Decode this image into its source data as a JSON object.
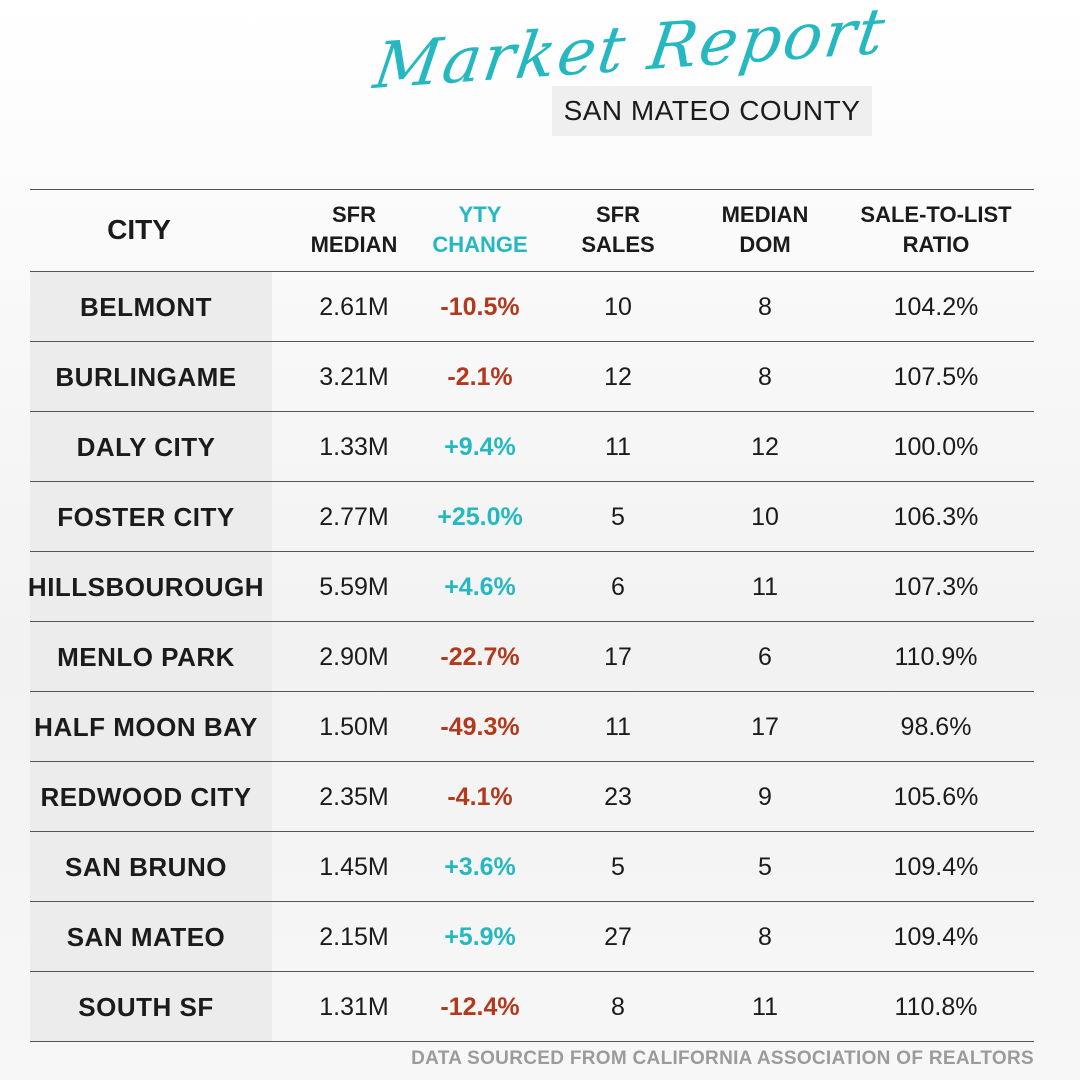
{
  "title_script": "Market Report",
  "county": "SAN MATEO COUNTY",
  "colors": {
    "accent": "#25b8c0",
    "negative": "#b2391c"
  },
  "headers": {
    "city": "CITY",
    "median": [
      "SFR",
      "MEDIAN"
    ],
    "change": [
      "YTY",
      "CHANGE"
    ],
    "sales": [
      "SFR",
      "SALES"
    ],
    "dom": [
      "MEDIAN",
      "DOM"
    ],
    "ratio": [
      "SALE-TO-LIST",
      "RATIO"
    ]
  },
  "rows": [
    {
      "city": "BELMONT",
      "median": "2.61M",
      "change": "-10.5%",
      "sales": "10",
      "dom": "8",
      "ratio": "104.2%"
    },
    {
      "city": "BURLINGAME",
      "median": "3.21M",
      "change": "-2.1%",
      "sales": "12",
      "dom": "8",
      "ratio": "107.5%"
    },
    {
      "city": "DALY CITY",
      "median": "1.33M",
      "change": "+9.4%",
      "sales": "11",
      "dom": "12",
      "ratio": "100.0%"
    },
    {
      "city": "FOSTER CITY",
      "median": "2.77M",
      "change": "+25.0%",
      "sales": "5",
      "dom": "10",
      "ratio": "106.3%"
    },
    {
      "city": "HILLSBOUROUGH",
      "median": "5.59M",
      "change": "+4.6%",
      "sales": "6",
      "dom": "11",
      "ratio": "107.3%"
    },
    {
      "city": "MENLO PARK",
      "median": "2.90M",
      "change": "-22.7%",
      "sales": "17",
      "dom": "6",
      "ratio": "110.9%"
    },
    {
      "city": "HALF MOON BAY",
      "median": "1.50M",
      "change": "-49.3%",
      "sales": "11",
      "dom": "17",
      "ratio": "98.6%"
    },
    {
      "city": "REDWOOD CITY",
      "median": "2.35M",
      "change": "-4.1%",
      "sales": "23",
      "dom": "9",
      "ratio": "105.6%"
    },
    {
      "city": "SAN BRUNO",
      "median": "1.45M",
      "change": "+3.6%",
      "sales": "5",
      "dom": "5",
      "ratio": "109.4%"
    },
    {
      "city": "SAN MATEO",
      "median": "2.15M",
      "change": "+5.9%",
      "sales": "27",
      "dom": "8",
      "ratio": "109.4%"
    },
    {
      "city": "SOUTH SF",
      "median": "1.31M",
      "change": "-12.4%",
      "sales": "8",
      "dom": "11",
      "ratio": "110.8%"
    }
  ],
  "footer": "DATA SOURCED FROM CALIFORNIA ASSOCIATION OF REALTORS"
}
